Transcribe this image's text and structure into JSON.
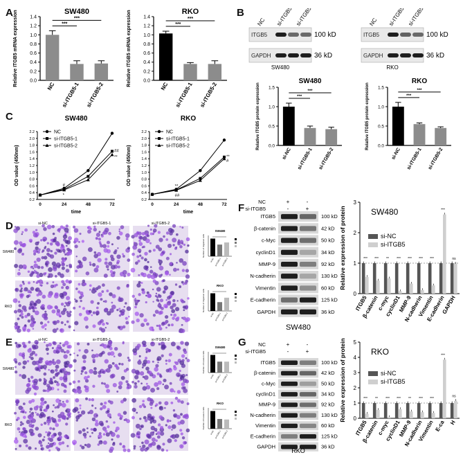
{
  "panels": {
    "A": {
      "letter": "A",
      "charts": [
        {
          "title": "SW480",
          "ylabel": "Relative ITGB5 mRNA expression",
          "categories": [
            "NC",
            "si-ITGB5-1",
            "si-ITGB5-2"
          ],
          "values": [
            1.0,
            0.36,
            0.37
          ],
          "errors": [
            0.09,
            0.07,
            0.06
          ],
          "colors": [
            "#8c8c8c",
            "#8c8c8c",
            "#8c8c8c"
          ],
          "ylim": [
            0,
            1.4
          ],
          "yticks": [
            "0.0",
            "0.2",
            "0.4",
            "0.6",
            "0.8",
            "1.0",
            "1.2",
            "1.4"
          ],
          "sig": [
            "***",
            "***"
          ]
        },
        {
          "title": "RKO",
          "ylabel": "Relative ITGB5 mRNA expression",
          "categories": [
            "NC",
            "si-ITGB5-1",
            "si-ITGB5-2"
          ],
          "values": [
            1.03,
            0.36,
            0.36
          ],
          "errors": [
            0.05,
            0.03,
            0.07
          ],
          "colors": [
            "#000000",
            "#8c8c8c",
            "#8c8c8c"
          ],
          "ylim": [
            0,
            1.4
          ],
          "yticks": [
            "0.0",
            "0.2",
            "0.4",
            "0.6",
            "0.8",
            "1.0",
            "1.2",
            "1.4"
          ],
          "sig": [
            "***",
            "***"
          ]
        }
      ]
    },
    "B": {
      "letter": "B",
      "blots": [
        {
          "cell": "SW480",
          "lanes": [
            "NC",
            "si-ITGB5-1",
            "si-ITGB5-2"
          ],
          "rows": [
            {
              "name": "ITGB5",
              "kd": "100 kD",
              "intensity": [
                1.0,
                0.55,
                0.55
              ]
            },
            {
              "name": "GAPDH",
              "kd": "36 kD",
              "intensity": [
                1.0,
                1.0,
                1.0
              ]
            }
          ]
        },
        {
          "cell": "RKO",
          "lanes": [
            "NC",
            "si-ITGB5-1",
            "si-ITGB5-2"
          ],
          "rows": [
            {
              "name": "ITGB5",
              "kd": "100 kD",
              "intensity": [
                1.0,
                0.6,
                0.55
              ]
            },
            {
              "name": "GAPDH",
              "kd": "36 kD",
              "intensity": [
                1.0,
                1.0,
                1.0
              ]
            }
          ]
        }
      ],
      "charts": [
        {
          "title": "SW480",
          "ylabel": "Relative ITGB5 protein expression",
          "categories": [
            "si-NC",
            "si-ITGB5-1",
            "si-ITGB5-2"
          ],
          "values": [
            1.0,
            0.45,
            0.42
          ],
          "errors": [
            0.09,
            0.05,
            0.05
          ],
          "colors": [
            "#000000",
            "#8c8c8c",
            "#8c8c8c"
          ],
          "ylim": [
            0,
            1.5
          ],
          "yticks": [
            "0.0",
            "0.5",
            "1.0",
            "1.5"
          ],
          "sig": [
            "***",
            "***"
          ]
        },
        {
          "title": "RKO",
          "ylabel": "Relative ITGB5 protein expression",
          "categories": [
            "si-NC",
            "si-ITGB5-1",
            "si-ITGB5-2"
          ],
          "values": [
            1.0,
            0.55,
            0.45
          ],
          "errors": [
            0.11,
            0.03,
            0.03
          ],
          "colors": [
            "#000000",
            "#8c8c8c",
            "#8c8c8c"
          ],
          "ylim": [
            0,
            1.5
          ],
          "yticks": [
            "0.0",
            "0.5",
            "1.0",
            "1.5"
          ],
          "sig": [
            "***",
            "***"
          ]
        }
      ]
    },
    "C": {
      "letter": "C",
      "charts": [
        {
          "title": "SW480",
          "ylabel": "OD value (450nm)",
          "xlabel": "time",
          "x": [
            0,
            24,
            48,
            72
          ],
          "ylim": [
            0.2,
            2.2
          ],
          "yticks": [
            "0.2",
            "0.4",
            "0.6",
            "0.8",
            "1.0",
            "1.2",
            "1.4",
            "1.6",
            "1.8",
            "2.0",
            "2.2"
          ],
          "series": [
            {
              "name": "NC",
              "marker": "circle",
              "values": [
                0.33,
                0.53,
                1.05,
                2.15
              ]
            },
            {
              "name": "si-ITGB5-1",
              "marker": "square",
              "values": [
                0.33,
                0.5,
                0.88,
                1.62
              ]
            },
            {
              "name": "si-ITGB5-2",
              "marker": "triangle",
              "values": [
                0.33,
                0.48,
                0.78,
                1.52
              ]
            }
          ],
          "annotations": [
            "*",
            "#",
            "**",
            "##"
          ]
        },
        {
          "title": "RKO",
          "ylabel": "OD value (450nm)",
          "xlabel": "time",
          "x": [
            0,
            24,
            48,
            72
          ],
          "ylim": [
            0.2,
            2.2
          ],
          "yticks": [
            "0.2",
            "0.4",
            "0.6",
            "0.8",
            "1.0",
            "1.2",
            "1.4",
            "1.6",
            "1.8",
            "2.0",
            "2.2"
          ],
          "series": [
            {
              "name": "NC",
              "marker": "circle",
              "values": [
                0.35,
                0.5,
                1.05,
                1.95
              ]
            },
            {
              "name": "si-ITGB5-1",
              "marker": "square",
              "values": [
                0.35,
                0.48,
                0.82,
                1.45
              ]
            },
            {
              "name": "si-ITGB5-2",
              "marker": "triangle",
              "values": [
                0.35,
                0.47,
                0.76,
                1.4
              ]
            }
          ],
          "annotations": [
            "##",
            "**",
            "#",
            "**"
          ]
        }
      ]
    },
    "D": {
      "letter": "D",
      "col_labels": [
        "si-NC",
        "si-ITGB5-1",
        "si-ITGB5-2"
      ],
      "row_labels": [
        "SW480",
        "RKO"
      ],
      "charts": [
        {
          "title": "SW480",
          "ylabel": "Number of migration cells",
          "categories": [
            "si-NC",
            "si-ITGB5-1",
            "si-ITGB5-2"
          ],
          "values": [
            1.0,
            0.66,
            0.78
          ],
          "legend": [
            "si-NC",
            "si-ITGB5-1",
            "si-ITGB5-2"
          ]
        },
        {
          "title": "RKO",
          "ylabel": "Number of migration cells",
          "categories": [
            "si-NC",
            "si-ITGB5-1",
            "si-ITGB5-2"
          ],
          "values": [
            1.0,
            0.5,
            0.75
          ],
          "legend": [
            "si-NC",
            "si-ITGB5-1",
            "si-ITGB5-2"
          ]
        }
      ]
    },
    "E": {
      "letter": "E",
      "col_labels": [
        "si-NC",
        "si-ITGB5-1",
        "si-ITGB5-2"
      ],
      "row_labels": [
        "SW480",
        "RKO"
      ],
      "charts": [
        {
          "title": "SW480",
          "ylabel": "Number of invasion cells",
          "categories": [
            "si-NC",
            "si-ITGB5-1",
            "si-ITGB5-2"
          ],
          "values": [
            1.0,
            0.62,
            0.62
          ],
          "legend": [
            "si-NC",
            "si-ITGB5-1",
            "si-ITGB5-2"
          ]
        },
        {
          "title": "RKO",
          "ylabel": "Number of invasion cells",
          "categories": [
            "si-NC",
            "si-ITGB5-1",
            "si-ITGB5-2"
          ],
          "values": [
            1.0,
            0.55,
            0.52
          ],
          "legend": [
            "si-NC",
            "si-ITGB5-1",
            "si-ITGB5-2"
          ]
        }
      ]
    },
    "F": {
      "letter": "F",
      "cell": "SW480",
      "conditions": [
        {
          "name": "NC",
          "marks": [
            "+",
            "-"
          ]
        },
        {
          "name": "si-ITGB5",
          "marks": [
            "-",
            "+"
          ]
        }
      ],
      "rows": [
        {
          "name": "ITGB5",
          "kd": "100 kD",
          "intensity": [
            1.0,
            0.55
          ]
        },
        {
          "name": "β-catenin",
          "kd": "42 kD",
          "intensity": [
            1.0,
            0.45
          ]
        },
        {
          "name": "c-Myc",
          "kd": "50 kD",
          "intensity": [
            1.0,
            0.5
          ]
        },
        {
          "name": "cyclinD1",
          "kd": "34 kD",
          "intensity": [
            1.0,
            0.15
          ]
        },
        {
          "name": "MMP-9",
          "kd": "92 kD",
          "intensity": [
            1.0,
            0.4
          ]
        },
        {
          "name": "N-cadherin",
          "kd": "130 kD",
          "intensity": [
            1.0,
            0.15
          ]
        },
        {
          "name": "Vimentin",
          "kd": "60 kD",
          "intensity": [
            1.0,
            0.3
          ]
        },
        {
          "name": "E-cadherin",
          "kd": "125 kD",
          "intensity": [
            0.5,
            1.0
          ]
        },
        {
          "name": "GAPDH",
          "kd": "36 kD",
          "intensity": [
            1.0,
            1.0
          ]
        }
      ],
      "chart": {
        "title": "SW480",
        "ylabel": "Relative expression of protein",
        "categories": [
          "ITGB5",
          "β-catenin",
          "c-myc",
          "cyclinD1",
          "MMP-9",
          "N-cadherin",
          "Vimentin",
          "E-cadherin",
          "GAPDH"
        ],
        "ylim": [
          0,
          3
        ],
        "yticks": [
          "0",
          "1",
          "2",
          "3"
        ],
        "series": [
          {
            "name": "si-NC",
            "color": "#555555",
            "values": [
              1,
              1,
              1,
              1,
              1,
              1,
              1,
              1,
              1
            ]
          },
          {
            "name": "si-ITGB5",
            "color": "#cfcfcf",
            "values": [
              0.55,
              0.43,
              0.5,
              0.08,
              0.33,
              0.12,
              0.27,
              2.6,
              0.98
            ]
          }
        ],
        "sig": [
          "***",
          "***",
          "**",
          "***",
          "***",
          "***",
          "***",
          "***",
          "ns"
        ]
      }
    },
    "G": {
      "letter": "G",
      "cell": "RKO",
      "conditions": [
        {
          "name": "NC",
          "marks": [
            "+",
            "-"
          ]
        },
        {
          "name": "si-ITGB5",
          "marks": [
            "-",
            "+"
          ]
        }
      ],
      "rows": [
        {
          "name": "ITGB5",
          "kd": "100 kD",
          "intensity": [
            1.0,
            0.4
          ]
        },
        {
          "name": "β-catenin",
          "kd": "42 kD",
          "intensity": [
            1.0,
            0.55
          ]
        },
        {
          "name": "c-Myc",
          "kd": "50 kD",
          "intensity": [
            1.0,
            0.2
          ]
        },
        {
          "name": "cyclinD1",
          "kd": "34 kD",
          "intensity": [
            1.0,
            0.55
          ]
        },
        {
          "name": "MMP-9",
          "kd": "92 kD",
          "intensity": [
            1.0,
            0.5
          ]
        },
        {
          "name": "N-cadherin",
          "kd": "130 kD",
          "intensity": [
            1.0,
            0.4
          ]
        },
        {
          "name": "Vimentin",
          "kd": "60 kD",
          "intensity": [
            1.0,
            0.35
          ]
        },
        {
          "name": "E-cadherin",
          "kd": "125 kD",
          "intensity": [
            0.4,
            1.0
          ]
        },
        {
          "name": "GAPDH",
          "kd": "36 kD",
          "intensity": [
            1.0,
            1.0
          ]
        }
      ],
      "chart": {
        "title": "RKO",
        "ylabel": "Relative expression of protein",
        "categories": [
          "ITGB5",
          "β-catenin",
          "c-myc",
          "cyclinD1",
          "MMP-9",
          "N-cadherin",
          "Vimentin",
          "E-ca",
          "H"
        ],
        "ylim": [
          0,
          5
        ],
        "yticks": [
          "0",
          "1",
          "2",
          "3",
          "4",
          "5"
        ],
        "series": [
          {
            "name": "si-NC",
            "color": "#555555",
            "values": [
              1,
              1,
              1,
              1,
              1,
              1,
              1,
              1,
              1
            ]
          },
          {
            "name": "si-ITGB5",
            "color": "#cfcfcf",
            "values": [
              0.3,
              0.55,
              0.08,
              0.6,
              0.45,
              0.4,
              0.35,
              3.85,
              1.15
            ]
          }
        ],
        "sig": [
          "***",
          "**",
          "***",
          "***",
          "**",
          "***",
          "***",
          "***",
          "ns"
        ]
      }
    }
  }
}
